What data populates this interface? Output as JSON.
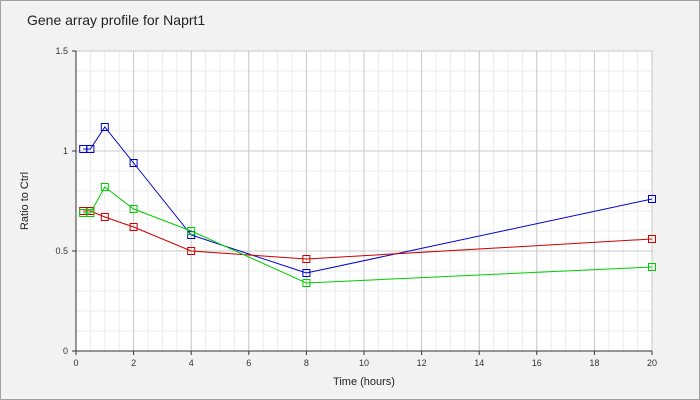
{
  "chart_data": {
    "type": "line",
    "title": "Gene array profile for Naprt1",
    "xlabel": "Time (hours)",
    "ylabel": "Ratio to Ctrl",
    "xlim": [
      0,
      20
    ],
    "ylim": [
      0,
      1.5
    ],
    "x_ticks": [
      0,
      2,
      4,
      6,
      8,
      10,
      12,
      14,
      16,
      18,
      20
    ],
    "x_tick_labels": [
      "0",
      "2",
      "4",
      "6",
      "8",
      "10",
      "12",
      "14",
      "16",
      "18",
      "20"
    ],
    "y_ticks": [
      0,
      0.5,
      1,
      1.5
    ],
    "y_tick_labels": [
      "0",
      "0.5",
      "1",
      "1.5"
    ],
    "grid": true,
    "legend": "none",
    "series": [
      {
        "color": "#0000cc",
        "x": [
          0.25,
          0.5,
          1,
          2,
          4,
          8,
          20
        ],
        "y": [
          1.01,
          1.01,
          1.12,
          0.94,
          0.58,
          0.39,
          0.76
        ]
      },
      {
        "color": "#cc0000",
        "x": [
          0.25,
          0.5,
          1,
          2,
          4,
          8,
          20
        ],
        "y": [
          0.7,
          0.7,
          0.67,
          0.62,
          0.5,
          0.46,
          0.56
        ]
      },
      {
        "color": "#00cc00",
        "x": [
          0.25,
          0.5,
          1,
          2,
          4,
          8,
          20
        ],
        "y": [
          0.69,
          0.69,
          0.82,
          0.71,
          0.6,
          0.34,
          0.42
        ]
      }
    ]
  }
}
